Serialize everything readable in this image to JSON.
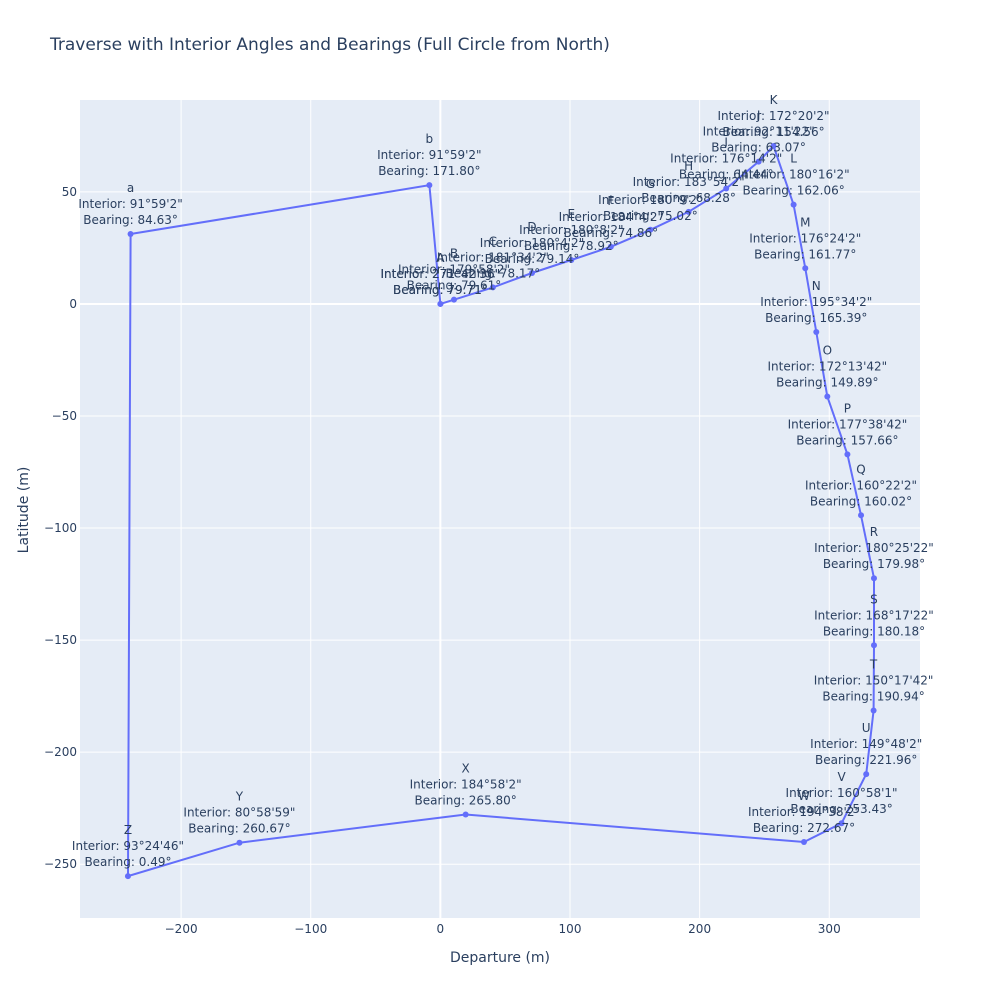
{
  "chart_data": {
    "type": "scatter",
    "mode": "lines+markers+text",
    "title": "Traverse with Interior Angles and Bearings (Full Circle from North)",
    "xlabel": "Departure (m)",
    "ylabel": "Latitude (m)",
    "xlim": [
      -278,
      370
    ],
    "ylim": [
      -274,
      91
    ],
    "xticks": [
      -200,
      -100,
      0,
      100,
      200,
      300
    ],
    "xtick_labels": [
      "−200",
      "−100",
      "0",
      "100",
      "200",
      "300"
    ],
    "yticks": [
      -250,
      -200,
      -150,
      -100,
      -50,
      0,
      50
    ],
    "ytick_labels": [
      "−250",
      "−200",
      "−150",
      "−100",
      "−50",
      "0",
      "50"
    ],
    "grid": true,
    "line_color": "#636efa",
    "plot_bg": "#e5ecf6",
    "points": [
      {
        "name": "A",
        "x": 0,
        "y": 0,
        "interior": "271°42'36\"",
        "bearing": "79.71°"
      },
      {
        "name": "B",
        "x": 10.5,
        "y": 1.9,
        "interior": "179°58'2\"",
        "bearing": "79.61°"
      },
      {
        "name": "C",
        "x": 40.5,
        "y": 7.4,
        "interior": "181°34'2\"",
        "bearing": "78.17°"
      },
      {
        "name": "D",
        "x": 70.7,
        "y": 13.8,
        "interior": "180°4'2\"",
        "bearing": "79.14°"
      },
      {
        "name": "E",
        "x": 101,
        "y": 19.6,
        "interior": "180°8'2\"",
        "bearing": "78.92°"
      },
      {
        "name": "F",
        "x": 131.5,
        "y": 25.5,
        "interior": "184°4'2\"",
        "bearing": "74.86°"
      },
      {
        "name": "G",
        "x": 162,
        "y": 33.1,
        "interior": "180°9'2\"",
        "bearing": "75.02°"
      },
      {
        "name": "H",
        "x": 191.5,
        "y": 41.1,
        "interior": "183°54'2\"",
        "bearing": "68.28°"
      },
      {
        "name": "I",
        "x": 220.5,
        "y": 51.5,
        "interior": "176°14'2\"",
        "bearing": "64.44°"
      },
      {
        "name": "J",
        "x": 245.5,
        "y": 63.5,
        "interior": "92°11'22\"",
        "bearing": "63.07°"
      },
      {
        "name": "K",
        "x": 257,
        "y": 70.5,
        "interior": "172°20'2\"",
        "bearing": "154.56°"
      },
      {
        "name": "L",
        "x": 272.5,
        "y": 44.3,
        "interior": "180°16'2\"",
        "bearing": "162.06°"
      },
      {
        "name": "M",
        "x": 281.5,
        "y": 15.9,
        "interior": "176°24'2\"",
        "bearing": "161.77°"
      },
      {
        "name": "N",
        "x": 290,
        "y": -12.5,
        "interior": "195°34'2\"",
        "bearing": "165.39°"
      },
      {
        "name": "O",
        "x": 298.5,
        "y": -41.3,
        "interior": "172°13'42\"",
        "bearing": "149.89°"
      },
      {
        "name": "P",
        "x": 314,
        "y": -67.1,
        "interior": "177°38'42\"",
        "bearing": "157.66°"
      },
      {
        "name": "Q",
        "x": 324.5,
        "y": -94.3,
        "interior": "160°22'2\"",
        "bearing": "160.02°"
      },
      {
        "name": "R",
        "x": 334.5,
        "y": -122.4,
        "interior": "180°25'22\"",
        "bearing": "179.98°"
      },
      {
        "name": "S",
        "x": 334.5,
        "y": -152.3,
        "interior": "168°17'22\"",
        "bearing": "180.18°"
      },
      {
        "name": "T",
        "x": 334.2,
        "y": -181.4,
        "interior": "150°17'42\"",
        "bearing": "190.94°"
      },
      {
        "name": "U",
        "x": 328.5,
        "y": -209.8,
        "interior": "149°48'2\"",
        "bearing": "221.96°"
      },
      {
        "name": "V",
        "x": 309.5,
        "y": -231.7,
        "interior": "160°58'1\"",
        "bearing": "253.43°"
      },
      {
        "name": "W",
        "x": 280.5,
        "y": -240.1,
        "interior": "194°38'2\"",
        "bearing": "272.67°"
      },
      {
        "name": "X",
        "x": 19.5,
        "y": -227.8,
        "interior": "184°58'2\"",
        "bearing": "265.80°"
      },
      {
        "name": "Y",
        "x": -155,
        "y": -240.4,
        "interior": "80°58'59\"",
        "bearing": "260.67°"
      },
      {
        "name": "Z",
        "x": -241,
        "y": -255.3,
        "interior": "93°24'46\"",
        "bearing": "0.49°"
      },
      {
        "name": "a",
        "x": -239,
        "y": 31.2,
        "interior": "91°59'2\"",
        "bearing": "84.63°"
      },
      {
        "name": "b",
        "x": -8.5,
        "y": 53,
        "interior": "91°59'2\"",
        "bearing": "171.80°"
      },
      {
        "name": "A",
        "x": 0,
        "y": 0,
        "interior": "271°42'36\"",
        "bearing": "79.71°"
      }
    ]
  }
}
